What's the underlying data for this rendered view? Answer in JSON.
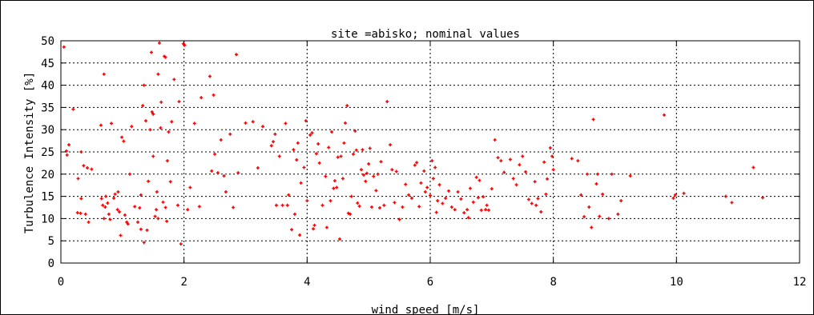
{
  "chart_data": {
    "type": "scatter",
    "title": "site =abisko; nominal values",
    "xlabel": "wind speed [m/s]",
    "ylabel": "Turbulence Intensity [%]",
    "xlim": [
      0,
      12
    ],
    "ylim": [
      0,
      50
    ],
    "x_ticks": [
      0,
      2,
      4,
      6,
      8,
      10,
      12
    ],
    "y_ticks": [
      0,
      5,
      10,
      15,
      20,
      25,
      30,
      35,
      40,
      45,
      50
    ],
    "grid": true,
    "point_color": "#ff0000",
    "points": [
      [
        0.05,
        48.6
      ],
      [
        0.09,
        25.2
      ],
      [
        0.1,
        24.3
      ],
      [
        0.13,
        26.6
      ],
      [
        0.2,
        34.6
      ],
      [
        0.27,
        11.3
      ],
      [
        0.28,
        19.0
      ],
      [
        0.32,
        11.2
      ],
      [
        0.33,
        25.0
      ],
      [
        0.33,
        14.5
      ],
      [
        0.37,
        21.9
      ],
      [
        0.4,
        11.0
      ],
      [
        0.43,
        21.4
      ],
      [
        0.45,
        9.2
      ],
      [
        0.5,
        21.1
      ],
      [
        0.65,
        31.0
      ],
      [
        0.66,
        14.5
      ],
      [
        0.68,
        13.0
      ],
      [
        0.7,
        42.5
      ],
      [
        0.7,
        10.0
      ],
      [
        0.72,
        12.6
      ],
      [
        0.73,
        15.0
      ],
      [
        0.76,
        13.5
      ],
      [
        0.78,
        11.0
      ],
      [
        0.8,
        9.8
      ],
      [
        0.82,
        31.4
      ],
      [
        0.86,
        14.6
      ],
      [
        0.88,
        15.5
      ],
      [
        0.92,
        12.0
      ],
      [
        0.93,
        16.0
      ],
      [
        0.95,
        11.5
      ],
      [
        0.97,
        6.2
      ],
      [
        0.99,
        28.3
      ],
      [
        1.02,
        27.4
      ],
      [
        1.04,
        10.8
      ],
      [
        1.07,
        9.2
      ],
      [
        1.09,
        8.8
      ],
      [
        1.12,
        20.0
      ],
      [
        1.15,
        30.7
      ],
      [
        1.2,
        12.7
      ],
      [
        1.25,
        9.2
      ],
      [
        1.28,
        12.4
      ],
      [
        1.3,
        7.6
      ],
      [
        1.3,
        15.3
      ],
      [
        1.33,
        35.4
      ],
      [
        1.35,
        40.0
      ],
      [
        1.35,
        4.6
      ],
      [
        1.38,
        32.0
      ],
      [
        1.4,
        7.4
      ],
      [
        1.42,
        18.4
      ],
      [
        1.45,
        30.0
      ],
      [
        1.47,
        47.4
      ],
      [
        1.48,
        34.0
      ],
      [
        1.5,
        33.5
      ],
      [
        1.5,
        24.0
      ],
      [
        1.53,
        10.5
      ],
      [
        1.55,
        12.0
      ],
      [
        1.56,
        16.0
      ],
      [
        1.58,
        10.0
      ],
      [
        1.58,
        42.5
      ],
      [
        1.6,
        49.5
      ],
      [
        1.62,
        30.4
      ],
      [
        1.63,
        36.2
      ],
      [
        1.66,
        13.7
      ],
      [
        1.68,
        46.5
      ],
      [
        1.7,
        46.3
      ],
      [
        1.7,
        12.5
      ],
      [
        1.72,
        9.4
      ],
      [
        1.73,
        23.0
      ],
      [
        1.75,
        29.5
      ],
      [
        1.78,
        18.3
      ],
      [
        1.8,
        31.8
      ],
      [
        1.84,
        41.3
      ],
      [
        1.9,
        13.0
      ],
      [
        1.92,
        36.3
      ],
      [
        1.95,
        4.3
      ],
      [
        1.99,
        49.3
      ],
      [
        2.01,
        49.0
      ],
      [
        2.06,
        12.0
      ],
      [
        2.1,
        17.0
      ],
      [
        2.17,
        31.4
      ],
      [
        2.25,
        12.7
      ],
      [
        2.28,
        37.2
      ],
      [
        2.42,
        42.0
      ],
      [
        2.45,
        20.7
      ],
      [
        2.48,
        37.8
      ],
      [
        2.5,
        24.5
      ],
      [
        2.55,
        20.3
      ],
      [
        2.6,
        27.7
      ],
      [
        2.65,
        19.6
      ],
      [
        2.68,
        16.0
      ],
      [
        2.75,
        29.0
      ],
      [
        2.8,
        12.5
      ],
      [
        2.85,
        46.9
      ],
      [
        2.88,
        20.3
      ],
      [
        3.0,
        31.5
      ],
      [
        3.12,
        31.8
      ],
      [
        3.2,
        21.4
      ],
      [
        3.28,
        30.7
      ],
      [
        3.42,
        26.4
      ],
      [
        3.45,
        27.3
      ],
      [
        3.48,
        29.0
      ],
      [
        3.5,
        13.0
      ],
      [
        3.55,
        24.0
      ],
      [
        3.6,
        13.0
      ],
      [
        3.65,
        31.4
      ],
      [
        3.68,
        13.0
      ],
      [
        3.7,
        15.3
      ],
      [
        3.75,
        7.5
      ],
      [
        3.78,
        25.5
      ],
      [
        3.8,
        11.0
      ],
      [
        3.83,
        23.2
      ],
      [
        3.85,
        27.0
      ],
      [
        3.88,
        6.3
      ],
      [
        3.9,
        18.0
      ],
      [
        3.95,
        21.5
      ],
      [
        3.98,
        32.0
      ],
      [
        4.0,
        14.0
      ],
      [
        4.05,
        28.8
      ],
      [
        4.08,
        29.3
      ],
      [
        4.1,
        7.7
      ],
      [
        4.12,
        8.5
      ],
      [
        4.15,
        24.6
      ],
      [
        4.18,
        26.8
      ],
      [
        4.2,
        22.5
      ],
      [
        4.25,
        13.0
      ],
      [
        4.3,
        19.5
      ],
      [
        4.32,
        8.0
      ],
      [
        4.35,
        26.0
      ],
      [
        4.38,
        14.0
      ],
      [
        4.4,
        29.5
      ],
      [
        4.43,
        16.8
      ],
      [
        4.45,
        18.5
      ],
      [
        4.48,
        17.0
      ],
      [
        4.5,
        23.8
      ],
      [
        4.53,
        5.4
      ],
      [
        4.55,
        24.0
      ],
      [
        4.58,
        19.0
      ],
      [
        4.6,
        27.0
      ],
      [
        4.62,
        31.5
      ],
      [
        4.65,
        35.4
      ],
      [
        4.67,
        11.2
      ],
      [
        4.7,
        11.0
      ],
      [
        4.72,
        15.0
      ],
      [
        4.75,
        24.5
      ],
      [
        4.78,
        29.7
      ],
      [
        4.8,
        25.4
      ],
      [
        4.82,
        13.5
      ],
      [
        4.85,
        12.8
      ],
      [
        4.88,
        21.0
      ],
      [
        4.9,
        25.5
      ],
      [
        4.92,
        19.8
      ],
      [
        4.95,
        18.4
      ],
      [
        4.97,
        20.2
      ],
      [
        5.0,
        22.3
      ],
      [
        5.02,
        25.8
      ],
      [
        5.05,
        12.6
      ],
      [
        5.08,
        19.5
      ],
      [
        5.12,
        16.3
      ],
      [
        5.15,
        20.0
      ],
      [
        5.18,
        12.4
      ],
      [
        5.2,
        22.8
      ],
      [
        5.25,
        13.0
      ],
      [
        5.3,
        36.3
      ],
      [
        5.35,
        26.6
      ],
      [
        5.38,
        21.0
      ],
      [
        5.42,
        13.6
      ],
      [
        5.45,
        20.6
      ],
      [
        5.5,
        9.8
      ],
      [
        5.55,
        12.6
      ],
      [
        5.6,
        17.7
      ],
      [
        5.65,
        15.3
      ],
      [
        5.7,
        14.6
      ],
      [
        5.75,
        22.0
      ],
      [
        5.78,
        22.6
      ],
      [
        5.82,
        12.7
      ],
      [
        5.85,
        18.0
      ],
      [
        5.9,
        20.7
      ],
      [
        5.92,
        16.0
      ],
      [
        5.95,
        17.0
      ],
      [
        6.0,
        15.2
      ],
      [
        6.03,
        23.0
      ],
      [
        6.05,
        19.0
      ],
      [
        6.08,
        21.5
      ],
      [
        6.1,
        11.4
      ],
      [
        6.12,
        14.0
      ],
      [
        6.15,
        17.6
      ],
      [
        6.2,
        13.4
      ],
      [
        6.25,
        14.6
      ],
      [
        6.3,
        16.2
      ],
      [
        6.35,
        12.6
      ],
      [
        6.4,
        12.0
      ],
      [
        6.45,
        16.0
      ],
      [
        6.5,
        14.4
      ],
      [
        6.55,
        11.3
      ],
      [
        6.6,
        12.0
      ],
      [
        6.62,
        10.2
      ],
      [
        6.65,
        16.8
      ],
      [
        6.7,
        13.7
      ],
      [
        6.75,
        19.3
      ],
      [
        6.78,
        14.7
      ],
      [
        6.8,
        18.6
      ],
      [
        6.83,
        11.9
      ],
      [
        6.86,
        14.9
      ],
      [
        6.9,
        12.0
      ],
      [
        6.92,
        13.0
      ],
      [
        6.95,
        11.9
      ],
      [
        7.0,
        16.7
      ],
      [
        7.05,
        27.7
      ],
      [
        7.1,
        23.7
      ],
      [
        7.15,
        23.0
      ],
      [
        7.2,
        20.4
      ],
      [
        7.3,
        23.3
      ],
      [
        7.35,
        19.0
      ],
      [
        7.4,
        17.6
      ],
      [
        7.45,
        22.1
      ],
      [
        7.5,
        24.0
      ],
      [
        7.55,
        20.5
      ],
      [
        7.6,
        14.3
      ],
      [
        7.65,
        13.4
      ],
      [
        7.7,
        18.3
      ],
      [
        7.72,
        13.0
      ],
      [
        7.75,
        14.5
      ],
      [
        7.8,
        11.5
      ],
      [
        7.85,
        22.7
      ],
      [
        7.88,
        15.5
      ],
      [
        7.9,
        18.9
      ],
      [
        7.95,
        25.9
      ],
      [
        7.98,
        24.0
      ],
      [
        8.0,
        21.0
      ],
      [
        8.3,
        23.5
      ],
      [
        8.4,
        23.0
      ],
      [
        8.45,
        15.3
      ],
      [
        8.5,
        10.4
      ],
      [
        8.55,
        20.0
      ],
      [
        8.58,
        12.6
      ],
      [
        8.62,
        8.0
      ],
      [
        8.65,
        32.3
      ],
      [
        8.7,
        17.8
      ],
      [
        8.72,
        20.0
      ],
      [
        8.75,
        10.5
      ],
      [
        8.8,
        15.5
      ],
      [
        8.9,
        10.0
      ],
      [
        8.95,
        20.0
      ],
      [
        9.05,
        11.0
      ],
      [
        9.1,
        14.0
      ],
      [
        9.25,
        19.6
      ],
      [
        9.8,
        33.3
      ],
      [
        9.95,
        14.6
      ],
      [
        9.98,
        15.3
      ],
      [
        10.12,
        15.7
      ],
      [
        10.8,
        15.0
      ],
      [
        10.9,
        13.6
      ],
      [
        11.25,
        21.5
      ],
      [
        11.4,
        14.7
      ]
    ]
  }
}
